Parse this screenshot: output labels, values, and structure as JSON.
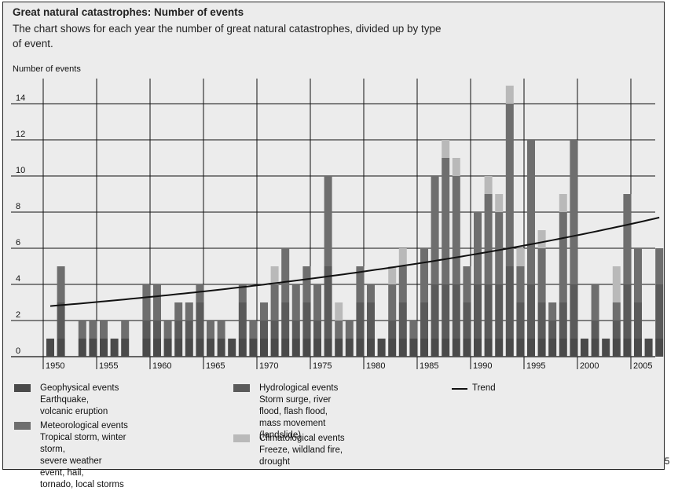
{
  "header": {
    "title": "Great natural catastrophes: Number of events",
    "subtitle": "The chart shows for each year the number of great natural catastrophes, divided up by type of event."
  },
  "page_number": "5",
  "legend": {
    "geophysical": {
      "name": "Geophysical events",
      "desc": "Earthquake, volcanic eruption"
    },
    "hydrological": {
      "name": "Hydrological events",
      "desc": "Storm surge, river flood, flash flood,\nmass movement (landslide)"
    },
    "meteorological": {
      "name": "Meteorological events",
      "desc": "Tropical storm, winter storm,\nsevere weather event, hail,\ntornado, local storms"
    },
    "climatological": {
      "name": "Climatological events",
      "desc": "Freeze, wildland fire, drought"
    },
    "trend": {
      "name": "Trend"
    }
  },
  "colors": {
    "geophysical": "#4a4a4a",
    "hydrological": "#5a5a5a",
    "meteorological": "#6e6e6e",
    "climatological": "#b9b9b9",
    "background": "#ececec",
    "grid": "#111111",
    "trend": "#111111"
  },
  "chart_data": {
    "type": "bar",
    "stacked": true,
    "title": "Great natural catastrophes: Number of events",
    "ylabel": "Number of events",
    "xlabel": "",
    "ylim": [
      0,
      16
    ],
    "yticks": [
      0,
      2,
      4,
      6,
      8,
      10,
      12,
      14
    ],
    "xtick_labels": [
      "1950",
      "1955",
      "1960",
      "1965",
      "1970",
      "1975",
      "1980",
      "1985",
      "1990",
      "1995",
      "2000",
      "2005"
    ],
    "grid": true,
    "legend_position": "bottom",
    "x_start": 1950,
    "categories": [
      1950,
      1951,
      1952,
      1953,
      1954,
      1955,
      1956,
      1957,
      1958,
      1959,
      1960,
      1961,
      1962,
      1963,
      1964,
      1965,
      1966,
      1967,
      1968,
      1969,
      1970,
      1971,
      1972,
      1973,
      1974,
      1975,
      1976,
      1977,
      1978,
      1979,
      1980,
      1981,
      1982,
      1983,
      1984,
      1985,
      1986,
      1987,
      1988,
      1989,
      1990,
      1991,
      1992,
      1993,
      1994,
      1995,
      1996,
      1997,
      1998,
      1999,
      2000,
      2001,
      2002,
      2003,
      2004,
      2005,
      2006,
      2007
    ],
    "series": [
      {
        "name": "Geophysical events",
        "color": "#4a4a4a",
        "values": [
          1,
          1,
          0,
          1,
          1,
          1,
          1,
          1,
          0,
          1,
          1,
          1,
          1,
          1,
          1,
          1,
          1,
          1,
          1,
          1,
          1,
          1,
          1,
          1,
          1,
          1,
          1,
          1,
          1,
          1,
          1,
          1,
          1,
          1,
          1,
          1,
          1,
          1,
          1,
          1,
          1,
          1,
          1,
          1,
          1,
          1,
          1,
          1,
          1,
          1,
          1,
          1,
          1,
          1,
          1,
          1,
          1,
          1
        ]
      },
      {
        "name": "Hydrological events",
        "color": "#5a5a5a",
        "values": [
          0,
          2,
          0,
          0,
          0,
          0,
          0,
          0,
          0,
          1,
          1,
          0,
          1,
          1,
          2,
          0,
          0,
          0,
          2,
          0,
          1,
          1,
          2,
          1,
          2,
          1,
          4,
          0,
          0,
          2,
          2,
          0,
          1,
          2,
          0,
          2,
          3,
          3,
          3,
          2,
          3,
          3,
          3,
          4,
          2,
          3,
          2,
          1,
          2,
          3,
          0,
          1,
          0,
          1,
          3,
          2,
          0,
          3
        ]
      },
      {
        "name": "Meteorological events",
        "color": "#6e6e6e",
        "values": [
          0,
          2,
          0,
          1,
          1,
          1,
          0,
          1,
          0,
          2,
          2,
          1,
          1,
          1,
          1,
          1,
          1,
          0,
          1,
          1,
          1,
          2,
          3,
          2,
          2,
          2,
          5,
          1,
          1,
          2,
          1,
          0,
          2,
          2,
          1,
          3,
          6,
          7,
          6,
          2,
          4,
          5,
          4,
          9,
          2,
          8,
          3,
          1,
          5,
          8,
          0,
          2,
          0,
          1,
          5,
          3,
          0,
          2
        ]
      },
      {
        "name": "Climatological events",
        "color": "#b9b9b9",
        "values": [
          0,
          0,
          0,
          0,
          0,
          0,
          0,
          0,
          0,
          0,
          0,
          0,
          0,
          0,
          0,
          0,
          0,
          0,
          0,
          0,
          0,
          1,
          0,
          0,
          0,
          0,
          0,
          1,
          0,
          0,
          0,
          0,
          1,
          1,
          0,
          0,
          0,
          1,
          1,
          0,
          0,
          1,
          1,
          1,
          1,
          0,
          1,
          0,
          1,
          0,
          0,
          0,
          0,
          2,
          0,
          0,
          0,
          0
        ]
      }
    ],
    "totals": [
      1,
      5,
      0,
      2,
      2,
      2,
      1,
      2,
      0,
      4,
      4,
      2,
      3,
      3,
      4,
      2,
      2,
      1,
      4,
      2,
      3,
      5,
      6,
      4,
      5,
      4,
      10,
      3,
      2,
      5,
      4,
      1,
      5,
      6,
      2,
      6,
      10,
      12,
      11,
      5,
      8,
      10,
      9,
      15,
      6,
      12,
      7,
      3,
      9,
      12,
      1,
      4,
      1,
      5,
      9,
      6,
      1,
      6
    ],
    "trend": {
      "x": [
        1950,
        2007
      ],
      "y": [
        2.8,
        7.7
      ],
      "shape": "exponential"
    }
  }
}
